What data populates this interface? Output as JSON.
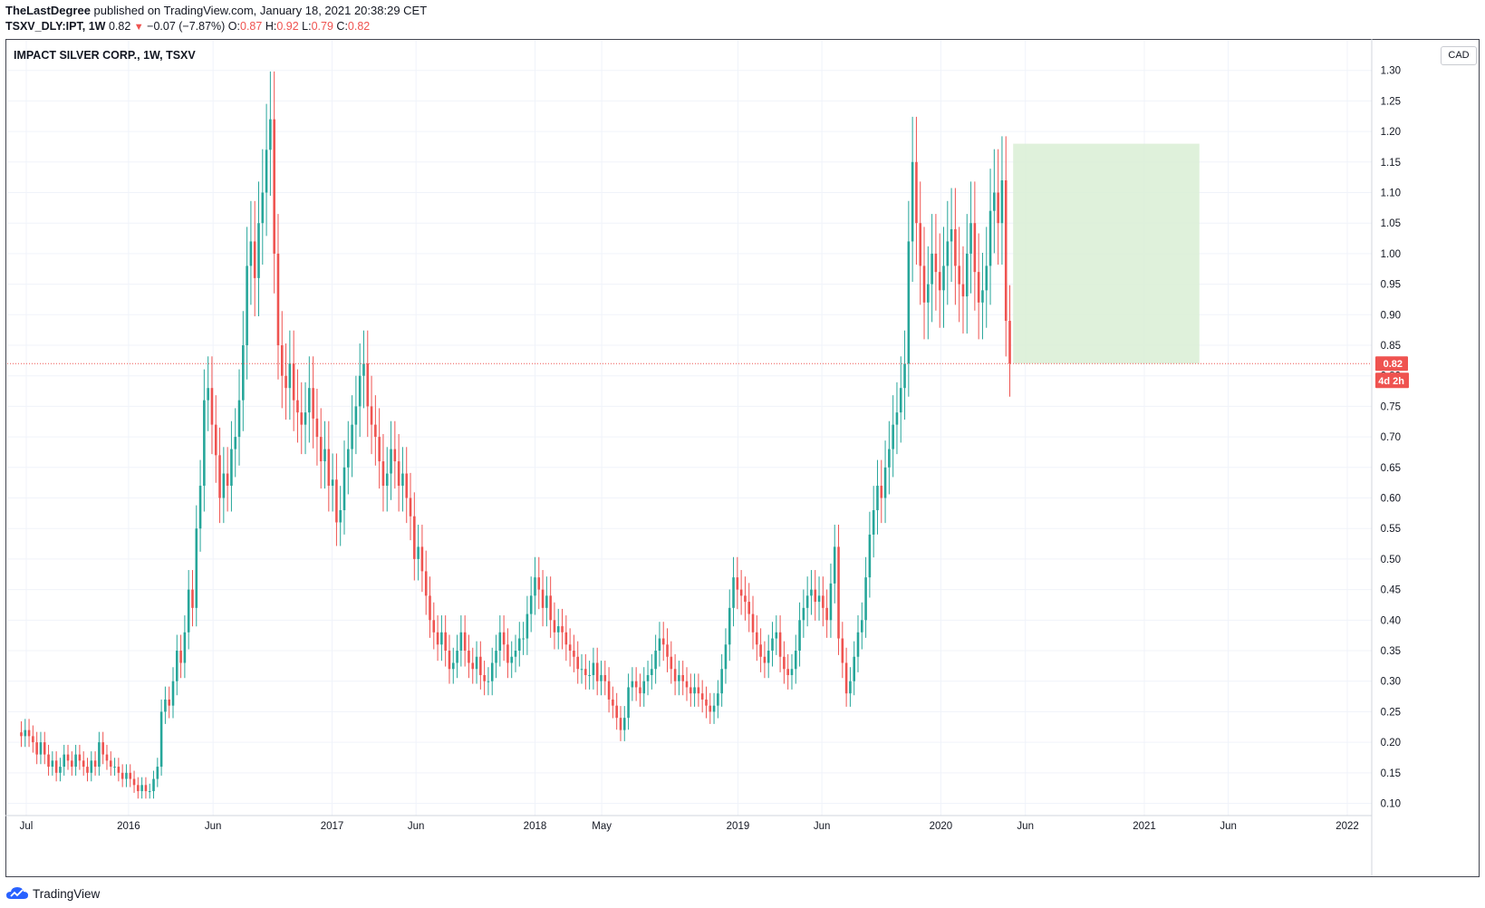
{
  "header": {
    "author": "TheLastDegree",
    "published_text": "published on TradingView.com, January 18, 2021 20:38:29 CET",
    "symbol": "TSXV_DLY:IPT, 1W",
    "last": "0.82",
    "change": "−0.07 (−7.87%)",
    "open_label": "O:",
    "open": "0.87",
    "high_label": "H:",
    "high": "0.92",
    "low_label": "L:",
    "low": "0.79",
    "close_label": "C:",
    "close": "0.82"
  },
  "chart_title": "IMPACT SILVER CORP., 1W, TSXV",
  "currency": "CAD",
  "price_tag": "0.82",
  "countdown_tag": "4d 2h",
  "footer": {
    "brand": "TradingView"
  },
  "colors": {
    "up": "#26a69a",
    "down": "#ef5350",
    "highlight": "#d9eed5",
    "grid": "#f0f3fa",
    "price_line": "#ef5350"
  },
  "chart_data": {
    "type": "candlestick",
    "title": "IMPACT SILVER CORP., 1W, TSXV",
    "y_ticks": [
      "0.10",
      "0.15",
      "0.20",
      "0.25",
      "0.30",
      "0.35",
      "0.40",
      "0.45",
      "0.50",
      "0.55",
      "0.60",
      "0.65",
      "0.70",
      "0.75",
      "0.80",
      "0.85",
      "0.90",
      "0.95",
      "1.00",
      "1.05",
      "1.10",
      "1.15",
      "1.20",
      "1.25",
      "1.30"
    ],
    "ylim": [
      0.08,
      1.35
    ],
    "x_start": "2015-06-22",
    "x_tick_labels": [
      {
        "label": "Jul",
        "date": "2015-07-01"
      },
      {
        "label": "2016",
        "date": "2016-01-01"
      },
      {
        "label": "Jun",
        "date": "2016-06-01"
      },
      {
        "label": "2017",
        "date": "2017-01-01"
      },
      {
        "label": "Jun",
        "date": "2017-06-01"
      },
      {
        "label": "2018",
        "date": "2018-01-01"
      },
      {
        "label": "May",
        "date": "2018-05-01"
      },
      {
        "label": "2019",
        "date": "2019-01-01"
      },
      {
        "label": "Jun",
        "date": "2019-06-01"
      },
      {
        "label": "2020",
        "date": "2020-01-01"
      },
      {
        "label": "Jun",
        "date": "2020-06-01"
      },
      {
        "label": "2021",
        "date": "2021-01-01"
      },
      {
        "label": "Jun",
        "date": "2021-06-01"
      },
      {
        "label": "2022",
        "date": "2022-01-01"
      }
    ],
    "last_price": 0.82,
    "highlight_box": {
      "x_from": "2020-05-10",
      "x_to": "2021-04-10",
      "y_from": 0.82,
      "y_to": 1.18
    },
    "candles_close": [
      0.21,
      0.22,
      0.21,
      0.2,
      0.18,
      0.2,
      0.18,
      0.16,
      0.17,
      0.15,
      0.16,
      0.18,
      0.17,
      0.16,
      0.18,
      0.17,
      0.16,
      0.15,
      0.17,
      0.16,
      0.2,
      0.18,
      0.17,
      0.16,
      0.16,
      0.15,
      0.14,
      0.15,
      0.14,
      0.13,
      0.12,
      0.13,
      0.12,
      0.12,
      0.14,
      0.16,
      0.25,
      0.27,
      0.26,
      0.3,
      0.35,
      0.33,
      0.38,
      0.45,
      0.42,
      0.55,
      0.62,
      0.76,
      0.78,
      0.72,
      0.67,
      0.6,
      0.64,
      0.62,
      0.68,
      0.7,
      0.76,
      0.85,
      0.98,
      1.02,
      0.96,
      1.05,
      1.1,
      1.17,
      1.22,
      1.0,
      0.85,
      0.8,
      0.78,
      0.82,
      0.76,
      0.74,
      0.72,
      0.74,
      0.78,
      0.73,
      0.7,
      0.66,
      0.68,
      0.62,
      0.63,
      0.56,
      0.58,
      0.65,
      0.68,
      0.72,
      0.75,
      0.8,
      0.82,
      0.75,
      0.72,
      0.7,
      0.66,
      0.62,
      0.64,
      0.68,
      0.66,
      0.62,
      0.64,
      0.6,
      0.57,
      0.5,
      0.52,
      0.48,
      0.44,
      0.4,
      0.38,
      0.36,
      0.38,
      0.35,
      0.32,
      0.33,
      0.35,
      0.38,
      0.35,
      0.33,
      0.32,
      0.34,
      0.31,
      0.3,
      0.3,
      0.33,
      0.35,
      0.38,
      0.36,
      0.33,
      0.34,
      0.35,
      0.37,
      0.37,
      0.41,
      0.44,
      0.47,
      0.45,
      0.42,
      0.44,
      0.4,
      0.38,
      0.39,
      0.38,
      0.36,
      0.35,
      0.34,
      0.32,
      0.32,
      0.31,
      0.31,
      0.33,
      0.3,
      0.31,
      0.3,
      0.27,
      0.26,
      0.24,
      0.22,
      0.24,
      0.29,
      0.3,
      0.29,
      0.28,
      0.3,
      0.31,
      0.32,
      0.35,
      0.37,
      0.36,
      0.34,
      0.32,
      0.3,
      0.31,
      0.3,
      0.29,
      0.28,
      0.29,
      0.28,
      0.27,
      0.26,
      0.25,
      0.26,
      0.28,
      0.32,
      0.36,
      0.42,
      0.47,
      0.45,
      0.44,
      0.43,
      0.41,
      0.38,
      0.36,
      0.34,
      0.33,
      0.35,
      0.37,
      0.38,
      0.34,
      0.32,
      0.31,
      0.32,
      0.35,
      0.4,
      0.42,
      0.44,
      0.45,
      0.43,
      0.44,
      0.42,
      0.4,
      0.46,
      0.52,
      0.37,
      0.33,
      0.28,
      0.3,
      0.34,
      0.38,
      0.4,
      0.47,
      0.54,
      0.58,
      0.62,
      0.6,
      0.65,
      0.68,
      0.72,
      0.74,
      0.78,
      0.82,
      1.02,
      1.15,
      1.05,
      0.98,
      0.92,
      0.95,
      1.0,
      0.97,
      0.94,
      0.98,
      1.02,
      1.04,
      0.98,
      0.95,
      0.93,
      1.0,
      1.05,
      0.97,
      0.92,
      0.94,
      0.98,
      1.07,
      1.1,
      1.05,
      1.12,
      0.89,
      0.82
    ]
  }
}
